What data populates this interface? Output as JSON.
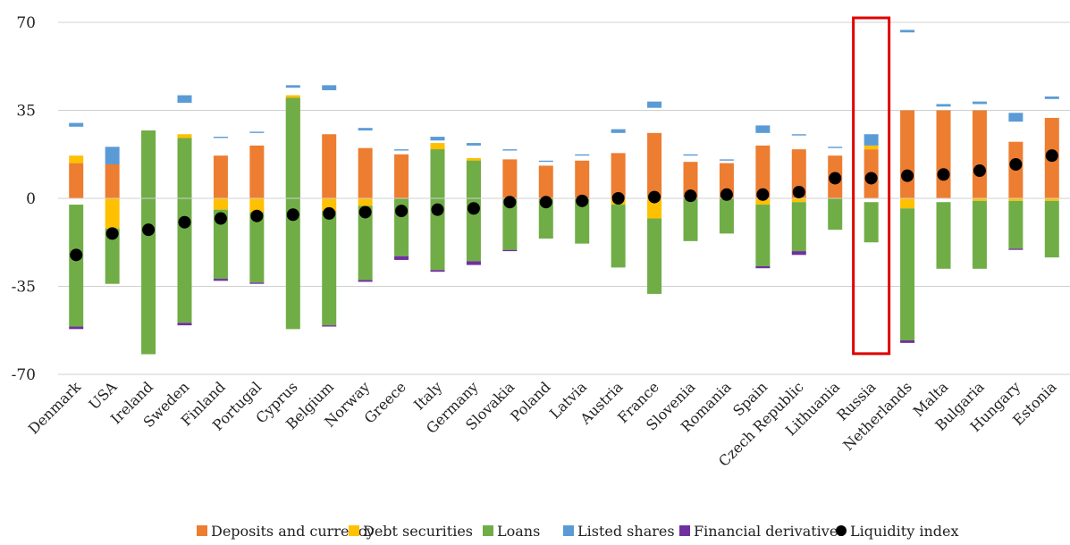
{
  "chart_data": {
    "type": "bar",
    "stacked": true,
    "title": "",
    "xlabel": "",
    "ylabel": "",
    "ylim": [
      -70,
      70
    ],
    "yticks": [
      -70,
      -35,
      0,
      35,
      70
    ],
    "grid": true,
    "legend_position": "bottom",
    "categories": [
      "Denmark",
      "USA",
      "Ireland",
      "Sweden",
      "Finland",
      "Portugal",
      "Cyprus",
      "Belgium",
      "Norway",
      "Greece",
      "Italy",
      "Germany",
      "Slovakia",
      "Poland",
      "Latvia",
      "Austria",
      "France",
      "Slovenia",
      "Romania",
      "Spain",
      "Czech Republic",
      "Lithuania",
      "Russia",
      "Netherlands",
      "Malta",
      "Bulgaria",
      "Hungary",
      "Estonia"
    ],
    "series": [
      {
        "name": "Deposits and currency",
        "color": "#ED7D31",
        "values": [
          [
            0,
            14
          ],
          [
            0,
            13.5
          ],
          [
            0,
            27
          ],
          [
            0,
            24
          ],
          [
            0,
            17
          ],
          [
            0,
            21
          ],
          [
            0,
            40
          ],
          [
            0,
            25.5
          ],
          [
            0,
            20
          ],
          [
            0,
            17.5
          ],
          [
            0,
            19.5
          ],
          [
            0,
            15
          ],
          [
            0,
            15.5
          ],
          [
            0,
            13
          ],
          [
            0,
            15
          ],
          [
            0,
            18
          ],
          [
            0,
            26
          ],
          [
            0,
            14.5
          ],
          [
            0,
            14
          ],
          [
            0,
            21
          ],
          [
            0,
            19.5
          ],
          [
            0,
            17
          ],
          [
            0,
            19.5
          ],
          [
            0,
            35
          ],
          [
            0,
            35
          ],
          [
            0,
            35
          ],
          [
            0,
            22.5
          ],
          [
            0,
            32
          ]
        ]
      },
      {
        "name": "Debt securities",
        "color": "#FFC000",
        "values": [
          [
            14,
            17
          ],
          [
            -12,
            0
          ],
          [
            0,
            0
          ],
          [
            24,
            25.5
          ],
          [
            -4.5,
            0
          ],
          [
            -5.5,
            0
          ],
          [
            40,
            41
          ],
          [
            -5,
            0
          ],
          [
            -3,
            0
          ],
          [
            0,
            0
          ],
          [
            19.5,
            22
          ],
          [
            15,
            16
          ],
          [
            0,
            0
          ],
          [
            0,
            0
          ],
          [
            0,
            0
          ],
          [
            -2.5,
            0
          ],
          [
            -8,
            0
          ],
          [
            0,
            0
          ],
          [
            0,
            0
          ],
          [
            -2.5,
            0
          ],
          [
            -1.5,
            0
          ],
          [
            0,
            0
          ],
          [
            19.5,
            21
          ],
          [
            -4,
            0
          ],
          [
            0,
            0
          ],
          [
            -1,
            0
          ],
          [
            -1,
            0
          ],
          [
            -1,
            0
          ]
        ]
      },
      {
        "name": "Loans",
        "color": "#70AD47",
        "values": [
          [
            -51,
            -2.5
          ],
          [
            -34,
            -12
          ],
          [
            -62,
            27
          ],
          [
            -49.5,
            24
          ],
          [
            -32,
            -4.5
          ],
          [
            -33.5,
            -5.5
          ],
          [
            -52,
            40
          ],
          [
            -50.5,
            -5
          ],
          [
            -32.5,
            -3
          ],
          [
            -23,
            0
          ],
          [
            -28.5,
            19.5
          ],
          [
            -25,
            15
          ],
          [
            -20.5,
            0
          ],
          [
            -16,
            0
          ],
          [
            -18,
            0
          ],
          [
            -27.5,
            -2.5
          ],
          [
            -38,
            -8
          ],
          [
            -17,
            0
          ],
          [
            -14,
            0
          ],
          [
            -27,
            -2.5
          ],
          [
            -21,
            -1.5
          ],
          [
            -12.5,
            0
          ],
          [
            -17.5,
            -1.5
          ],
          [
            -56.5,
            -4
          ],
          [
            -28,
            -1.5
          ],
          [
            -28,
            -1
          ],
          [
            -20,
            -1
          ],
          [
            -23.5,
            -1
          ]
        ]
      },
      {
        "name": "Listed shares",
        "color": "#5B9BD5",
        "values": [
          [
            28.5,
            30
          ],
          [
            13.5,
            20.5
          ],
          [
            0,
            0
          ],
          [
            38,
            41
          ],
          [
            24,
            24.5
          ],
          [
            26,
            26.5
          ],
          [
            44,
            45
          ],
          [
            43,
            45
          ],
          [
            27,
            28
          ],
          [
            19,
            19.5
          ],
          [
            23,
            24.5
          ],
          [
            21,
            22
          ],
          [
            19,
            19.5
          ],
          [
            14.5,
            15
          ],
          [
            17,
            17.5
          ],
          [
            26,
            27.5
          ],
          [
            36,
            38.5
          ],
          [
            17,
            17.5
          ],
          [
            15,
            15.5
          ],
          [
            26,
            29
          ],
          [
            25,
            25.5
          ],
          [
            20,
            20.5
          ],
          [
            21,
            25.5
          ],
          [
            66,
            67
          ],
          [
            36.5,
            37.5
          ],
          [
            37.5,
            38.5
          ],
          [
            30.5,
            34
          ],
          [
            39.5,
            40.5
          ]
        ]
      },
      {
        "name": "Financial derivatives",
        "color": "#7030A0",
        "values": [
          [
            -52,
            -51
          ],
          [
            0,
            0
          ],
          [
            0,
            0
          ],
          [
            -50.5,
            -49.5
          ],
          [
            -32.8,
            -32
          ],
          [
            -34,
            -33.5
          ],
          [
            0,
            0
          ],
          [
            -51,
            -50.5
          ],
          [
            -33.2,
            -32.5
          ],
          [
            -24.5,
            -23
          ],
          [
            -29.2,
            -28.5
          ],
          [
            -26.5,
            -25
          ],
          [
            -21,
            -20.5
          ],
          [
            0,
            0
          ],
          [
            0,
            0
          ],
          [
            0,
            0
          ],
          [
            0,
            0
          ],
          [
            0,
            0
          ],
          [
            0,
            0
          ],
          [
            -27.8,
            -27
          ],
          [
            -22.5,
            -21
          ],
          [
            0,
            0
          ],
          [
            0,
            0
          ],
          [
            -57.5,
            -56.5
          ],
          [
            0,
            0
          ],
          [
            0,
            0
          ],
          [
            -20.5,
            -20
          ],
          [
            0,
            0
          ]
        ]
      },
      {
        "name": "Liquidity index",
        "color": "#000000",
        "values": [
          -22.5,
          -14,
          -12.5,
          -9.5,
          -8,
          -7,
          -6.5,
          -6,
          -5.5,
          -5,
          -4.5,
          -4,
          -1.5,
          -1.5,
          -1,
          0,
          0.5,
          1,
          1.5,
          1.5,
          2.5,
          8,
          8,
          9,
          9.5,
          11,
          13.5,
          17
        ]
      }
    ],
    "annotation": {
      "type": "highlight-box",
      "category": "Russia",
      "color": "#E00000",
      "ylim": [
        -60,
        70
      ]
    }
  }
}
